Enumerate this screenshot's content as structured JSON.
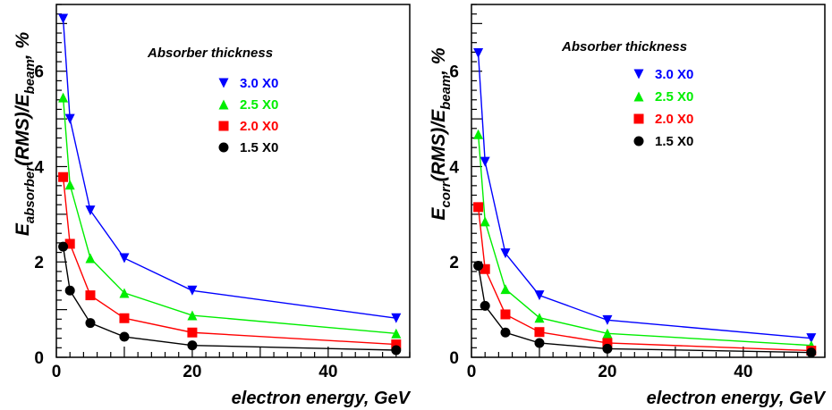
{
  "chart_data": [
    {
      "type": "line",
      "ylabel_main": "E",
      "ylabel_sub": "absorber",
      "ylabel_mid": "(RMS)/E",
      "ylabel_sub2": "beam",
      "ylabel_tail": ", %",
      "xlabel": "electron energy, GeV",
      "xlim": [
        0,
        52
      ],
      "ylim": [
        0,
        7.4
      ],
      "xticks": [
        0,
        20,
        40
      ],
      "yticks": [
        0,
        2,
        4,
        6
      ],
      "grid": false,
      "legend": {
        "title": "Absorber thickness",
        "placement": "top-center"
      },
      "x": [
        1,
        2,
        5,
        10,
        20,
        50
      ],
      "series": [
        {
          "name": "3.0 X0",
          "color": "#0000ff",
          "marker": "triangle-down",
          "values": [
            7.1,
            5.0,
            3.08,
            2.08,
            1.4,
            0.82
          ]
        },
        {
          "name": "2.5 X0",
          "color": "#00ee00",
          "marker": "triangle-up",
          "values": [
            5.45,
            3.62,
            2.08,
            1.35,
            0.88,
            0.5
          ]
        },
        {
          "name": "2.0 X0",
          "color": "#ff0000",
          "marker": "square",
          "values": [
            3.78,
            2.38,
            1.3,
            0.82,
            0.52,
            0.27
          ]
        },
        {
          "name": "1.5 X0",
          "color": "#000000",
          "marker": "circle",
          "values": [
            2.32,
            1.4,
            0.72,
            0.43,
            0.25,
            0.15
          ]
        }
      ]
    },
    {
      "type": "line",
      "ylabel_main": "E",
      "ylabel_sub": "corr",
      "ylabel_mid": "(RMS)/E",
      "ylabel_sub2": "beam",
      "ylabel_tail": ", %",
      "xlabel": "electron energy, GeV",
      "xlim": [
        0,
        52
      ],
      "ylim": [
        0,
        7.4
      ],
      "xticks": [
        0,
        20,
        40
      ],
      "yticks": [
        0,
        2,
        4,
        6
      ],
      "grid": false,
      "legend": {
        "title": "Absorber thickness",
        "placement": "top-center"
      },
      "x": [
        1,
        2,
        5,
        10,
        20,
        50
      ],
      "series": [
        {
          "name": "3.0 X0",
          "color": "#0000ff",
          "marker": "triangle-down",
          "values": [
            6.38,
            4.1,
            2.18,
            1.3,
            0.78,
            0.4
          ]
        },
        {
          "name": "2.5 X0",
          "color": "#00ee00",
          "marker": "triangle-up",
          "values": [
            4.68,
            2.85,
            1.43,
            0.83,
            0.5,
            0.25
          ]
        },
        {
          "name": "2.0 X0",
          "color": "#ff0000",
          "marker": "square",
          "values": [
            3.15,
            1.85,
            0.9,
            0.53,
            0.3,
            0.14
          ]
        },
        {
          "name": "1.5 X0",
          "color": "#000000",
          "marker": "circle",
          "values": [
            1.92,
            1.08,
            0.52,
            0.3,
            0.18,
            0.1
          ]
        }
      ]
    }
  ]
}
